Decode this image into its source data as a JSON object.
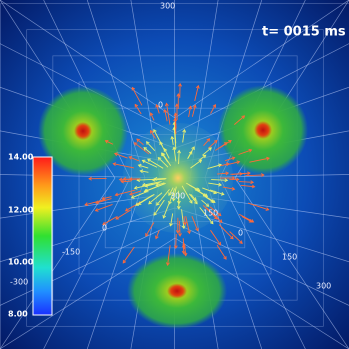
{
  "timestamp": "t= 0015 ms",
  "colorbar": {
    "ticks": [
      "14.00",
      "12.00",
      "10.00",
      "8.00"
    ]
  },
  "axis_labels": [
    "300",
    "0",
    "300",
    "150",
    "-150",
    "-300",
    "150",
    "300",
    "0",
    "0"
  ]
}
